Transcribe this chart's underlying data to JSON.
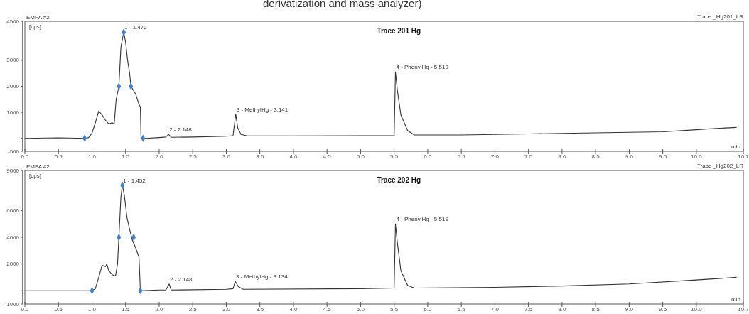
{
  "chart_data": [
    {
      "type": "line",
      "title": "Trace 201 Hg",
      "annotations": [
        "EMPA #2",
        "[cps]",
        "Trace _Hg201_LR",
        "min",
        "derivatization and mass analyzer)",
        {
          "text": "1 - 1.472",
          "x": 1.472,
          "y": 4080
        },
        {
          "text": "2 - 2.148",
          "x": 2.14,
          "y": 150
        },
        {
          "text": "3 - MethylHg - 3.141",
          "x": 3.141,
          "y": 930
        },
        {
          "text": "4 - PhenylHg - 5.519",
          "x": 5.519,
          "y": 2550
        }
      ],
      "xlim": [
        0,
        10.7
      ],
      "xticks": [
        {
          "value": 0,
          "label": "0.0"
        },
        {
          "value": 0.5,
          "label": "0.5"
        },
        {
          "value": 1,
          "label": "1.0"
        },
        {
          "value": 1.5,
          "label": "1.5"
        },
        {
          "value": 2,
          "label": "2.0"
        },
        {
          "value": 2.5,
          "label": "2.5"
        },
        {
          "value": 3,
          "label": "3.0"
        },
        {
          "value": 3.5,
          "label": "3.5"
        },
        {
          "value": 4,
          "label": "4.0"
        },
        {
          "value": 4.5,
          "label": "4.5"
        },
        {
          "value": 5,
          "label": "5.0"
        },
        {
          "value": 5.5,
          "label": "5.5"
        },
        {
          "value": 6,
          "label": "6.0"
        },
        {
          "value": 6.5,
          "label": "6.5"
        },
        {
          "value": 7,
          "label": "7.0"
        },
        {
          "value": 7.5,
          "label": "7.5"
        },
        {
          "value": 8,
          "label": "8.0"
        },
        {
          "value": 8.5,
          "label": "8.5"
        },
        {
          "value": 9,
          "label": "9.0"
        },
        {
          "value": 9.5,
          "label": "9.5"
        },
        {
          "value": 10,
          "label": "10.0"
        },
        10.7
      ],
      "ylim": [
        -500,
        4500
      ],
      "yticks": [
        -500,
        {
          "value": 0,
          "label": null
        },
        1000,
        2000,
        3000,
        4500
      ],
      "series": [
        {
          "color": "#333333",
          "marker": "none",
          "x": [
            0,
            0.5,
            0.9,
            0.95,
            1.0,
            1.05,
            1.1,
            1.15,
            1.2,
            1.25,
            1.3,
            1.33,
            1.36,
            1.4,
            1.43,
            1.472,
            1.5,
            1.53,
            1.56,
            1.58,
            1.65,
            1.7,
            1.72,
            1.73,
            1.8,
            2.0,
            2.1,
            2.14,
            2.18,
            2.5,
            3.0,
            3.1,
            3.141,
            3.17,
            3.22,
            3.3,
            4.0,
            5.0,
            5.5,
            5.519,
            5.55,
            5.6,
            5.7,
            5.8,
            6.5,
            7.5,
            8.5,
            9.5,
            10.0,
            10.3,
            10.6
          ],
          "values": [
            0,
            20,
            0,
            30,
            200,
            600,
            1050,
            900,
            700,
            550,
            600,
            550,
            1500,
            2000,
            3500,
            4080,
            3700,
            3000,
            2500,
            2000,
            1700,
            1300,
            1200,
            0,
            0,
            30,
            50,
            150,
            40,
            50,
            80,
            100,
            930,
            400,
            150,
            100,
            90,
            100,
            100,
            2550,
            1800,
            900,
            300,
            130,
            130,
            170,
            210,
            250,
            330,
            380,
            420
          ]
        },
        {
          "type": "scatter",
          "color": "#3b7dd8",
          "marker": "diamond",
          "x": [
            0.89,
            1.4,
            1.472,
            1.58,
            1.76
          ],
          "values": [
            0,
            2000,
            4080,
            2000,
            0
          ]
        }
      ]
    },
    {
      "type": "line",
      "title": "Trace 202 Hg",
      "annotations": [
        "EMPA #2",
        "[cps]",
        "Trace _Hg202_LR",
        "min",
        {
          "text": "1 - 1.452",
          "x": 1.452,
          "y": 7900
        },
        {
          "text": "2 - 2.148",
          "x": 2.148,
          "y": 500
        },
        {
          "text": "3 - MethylHg - 3.134",
          "x": 3.134,
          "y": 700
        },
        {
          "text": "4 - PhenylHg - 5.519",
          "x": 5.519,
          "y": 5000
        }
      ],
      "xlim": [
        0,
        10.7
      ],
      "xticks": [
        {
          "value": 0,
          "label": "0.0"
        },
        {
          "value": 0.5,
          "label": "0.5"
        },
        {
          "value": 1,
          "label": "1.0"
        },
        {
          "value": 1.5,
          "label": "1.5"
        },
        {
          "value": 2,
          "label": "2.0"
        },
        {
          "value": 2.5,
          "label": "2.5"
        },
        {
          "value": 3,
          "label": "3.0"
        },
        {
          "value": 3.5,
          "label": "3.5"
        },
        {
          "value": 4,
          "label": "4.0"
        },
        {
          "value": 4.5,
          "label": "4.5"
        },
        {
          "value": 5,
          "label": "5.0"
        },
        {
          "value": 5.5,
          "label": "5.5"
        },
        {
          "value": 6,
          "label": "6.0"
        },
        {
          "value": 6.5,
          "label": "6.5"
        },
        {
          "value": 7,
          "label": "7.0"
        },
        {
          "value": 7.5,
          "label": "7.5"
        },
        {
          "value": 8,
          "label": "8.0"
        },
        {
          "value": 8.5,
          "label": "8.5"
        },
        {
          "value": 9,
          "label": "9.0"
        },
        {
          "value": 9.5,
          "label": "9.5"
        },
        {
          "value": 10,
          "label": "10.0"
        },
        10.7
      ],
      "ylim": [
        -1000,
        9000
      ],
      "yticks": [
        -1000,
        {
          "value": 0,
          "label": null
        },
        2000,
        4000,
        6000,
        9000
      ],
      "series": [
        {
          "color": "#333333",
          "marker": "none",
          "x": [
            0,
            0.5,
            1.0,
            1.05,
            1.1,
            1.15,
            1.2,
            1.22,
            1.25,
            1.3,
            1.35,
            1.38,
            1.4,
            1.43,
            1.452,
            1.48,
            1.52,
            1.55,
            1.6,
            1.65,
            1.7,
            1.72,
            2.0,
            2.1,
            2.148,
            2.18,
            3.0,
            3.1,
            3.134,
            3.18,
            3.25,
            5.0,
            5.5,
            5.519,
            5.55,
            5.6,
            5.7,
            5.8,
            7.0,
            8.0,
            9.0,
            10.0,
            10.6
          ],
          "values": [
            0,
            0,
            0,
            150,
            1000,
            1900,
            1800,
            2000,
            1500,
            1200,
            1100,
            2000,
            4000,
            7000,
            7900,
            7200,
            5500,
            4800,
            3800,
            3200,
            2500,
            0,
            50,
            50,
            500,
            50,
            100,
            150,
            700,
            300,
            100,
            150,
            200,
            5000,
            3500,
            1500,
            400,
            200,
            250,
            350,
            500,
            800,
            1000
          ]
        },
        {
          "type": "scatter",
          "color": "#3b7dd8",
          "marker": "diamond",
          "x": [
            1.0,
            1.4,
            1.452,
            1.62,
            1.72
          ],
          "values": [
            0,
            4000,
            7900,
            4000,
            0
          ]
        }
      ]
    }
  ]
}
